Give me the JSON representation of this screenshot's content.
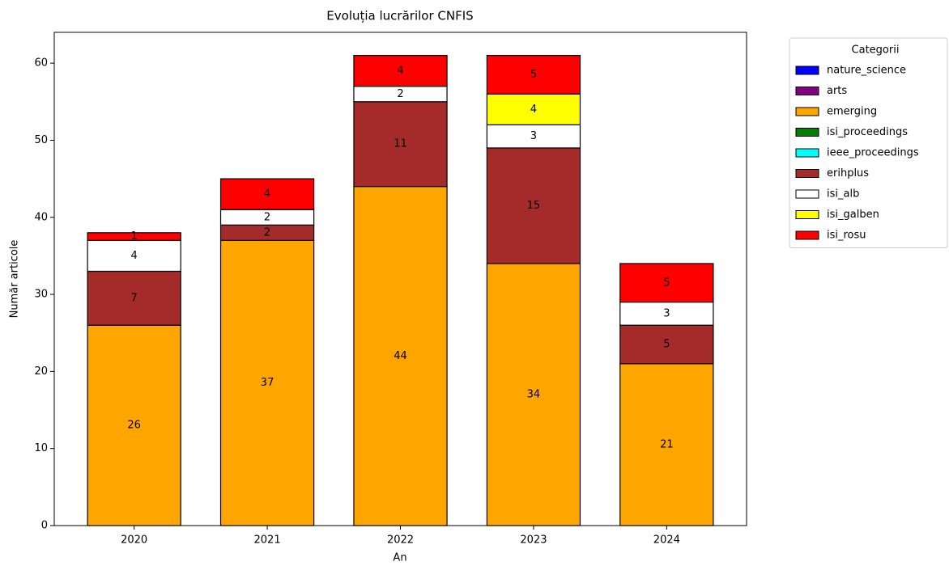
{
  "chart_data": {
    "type": "stacked_bar",
    "title": "Evoluția lucrărilor CNFIS",
    "x_label": "An",
    "y_label": "Număr articole",
    "categories": [
      "2020",
      "2021",
      "2022",
      "2023",
      "2024"
    ],
    "series": [
      {
        "name": "nature_science",
        "color": "#0000ff",
        "values": [
          0,
          0,
          0,
          0,
          0
        ]
      },
      {
        "name": "arts",
        "color": "#800080",
        "values": [
          0,
          0,
          0,
          0,
          0
        ]
      },
      {
        "name": "emerging",
        "color": "#ffa500",
        "values": [
          26,
          37,
          44,
          34,
          21
        ]
      },
      {
        "name": "isi_proceedings",
        "color": "#008000",
        "values": [
          0,
          0,
          0,
          0,
          0
        ]
      },
      {
        "name": "ieee_proceedings",
        "color": "#00ffff",
        "values": [
          0,
          0,
          0,
          0,
          0
        ]
      },
      {
        "name": "erihplus",
        "color": "#a52a2a",
        "values": [
          7,
          2,
          11,
          15,
          5
        ]
      },
      {
        "name": "isi_alb",
        "color": "#ffffff",
        "values": [
          4,
          2,
          2,
          3,
          3
        ]
      },
      {
        "name": "isi_galben",
        "color": "#ffff00",
        "values": [
          0,
          0,
          0,
          4,
          0
        ]
      },
      {
        "name": "isi_rosu",
        "color": "#ff0000",
        "values": [
          1,
          4,
          4,
          5,
          5
        ]
      }
    ],
    "legend_title": "Categorii",
    "legend": "outside upper right",
    "ylim": [
      0,
      64
    ],
    "yticks": [
      0,
      10,
      20,
      30,
      40,
      50,
      60
    ]
  }
}
